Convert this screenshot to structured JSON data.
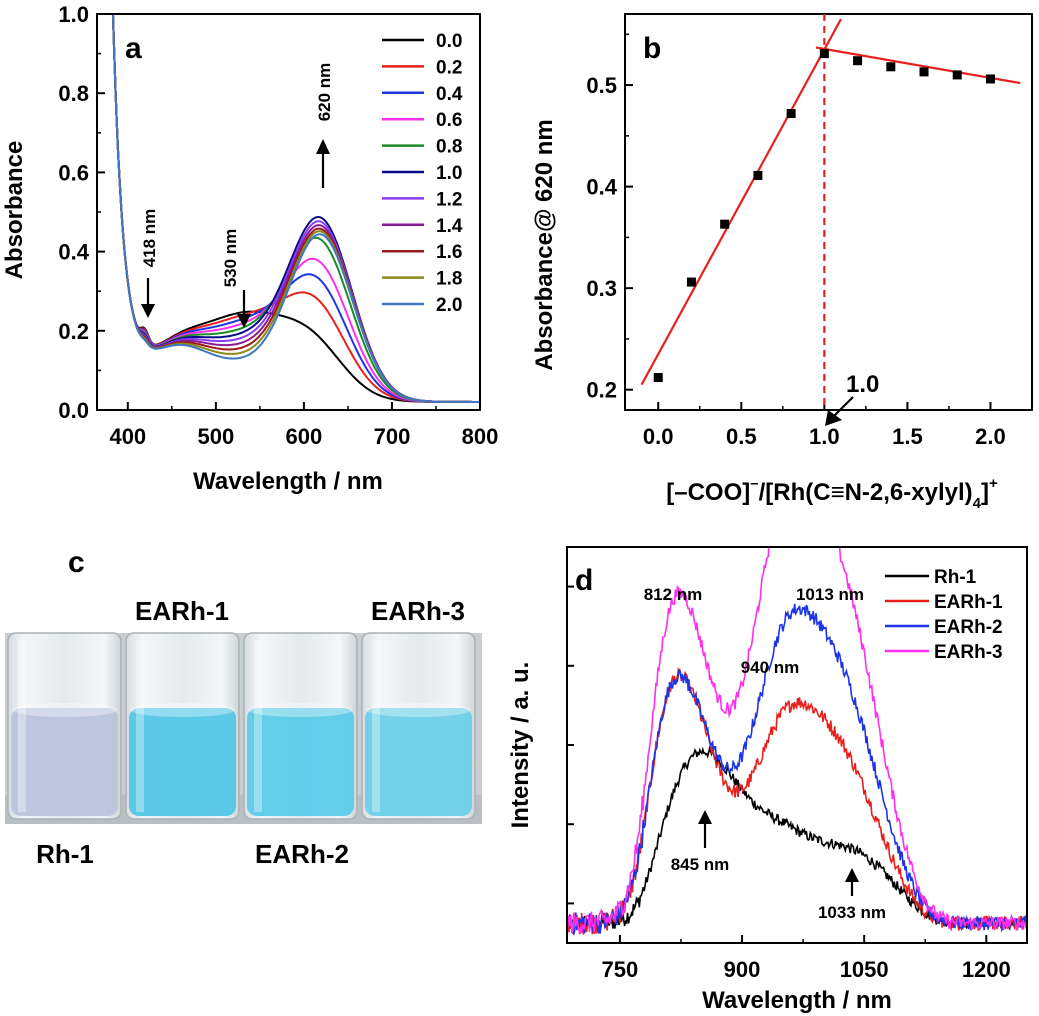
{
  "chart_data": [
    {
      "panel": "a",
      "type": "line",
      "xlabel": "Wavelength / nm",
      "ylabel": "Absorbance",
      "xlim": [
        365,
        800
      ],
      "ylim": [
        0.0,
        1.0
      ],
      "xticks": [
        400,
        500,
        600,
        700,
        800
      ],
      "yticks": [
        0.0,
        0.2,
        0.4,
        0.6,
        0.8,
        1.0
      ],
      "xtick_labels": [
        "400",
        "500",
        "600",
        "700",
        "800"
      ],
      "ytick_labels": [
        "0.0",
        "0.2",
        "0.4",
        "0.6",
        "0.8",
        "1.0"
      ],
      "legend_position": "top-right",
      "series": [
        {
          "name": "0.0",
          "color": "#000000",
          "peak": 0.215
        },
        {
          "name": "0.2",
          "color": "#e8201d",
          "peak": 0.305
        },
        {
          "name": "0.4",
          "color": "#1e35e6",
          "peak": 0.363
        },
        {
          "name": "0.6",
          "color": "#ff2ff0",
          "peak": 0.411
        },
        {
          "name": "0.8",
          "color": "#1a8a28",
          "peak": 0.472
        },
        {
          "name": "1.0",
          "color": "#0b0b8a",
          "peak": 0.531
        },
        {
          "name": "1.2",
          "color": "#8a3cf0",
          "peak": 0.524
        },
        {
          "name": "1.4",
          "color": "#8a1a9a",
          "peak": 0.518
        },
        {
          "name": "1.6",
          "color": "#9a1a1a",
          "peak": 0.513
        },
        {
          "name": "1.8",
          "color": "#8a8a1a",
          "peak": 0.51
        },
        {
          "name": "2.0",
          "color": "#3f78c0",
          "peak": 0.506
        }
      ],
      "annotations": {
        "a418": "418 nm",
        "a530": "530 nm",
        "a620": "620 nm"
      },
      "panel_label": "a"
    },
    {
      "panel": "b",
      "type": "scatter",
      "xlabel_main": "[–COO]",
      "xlabel_sup1": "–",
      "xlabel_mid": "/[Rh(C≡N-2,6-xylyl)",
      "xlabel_sub": "4",
      "xlabel_end": "]",
      "xlabel_sup2": "+",
      "ylabel": "Absorbance@ 620 nm",
      "xlim": [
        -0.2,
        2.25
      ],
      "ylim": [
        0.18,
        0.57
      ],
      "xticks": [
        0.0,
        0.5,
        1.0,
        1.5,
        2.0
      ],
      "yticks": [
        0.2,
        0.3,
        0.4,
        0.5
      ],
      "xtick_labels": [
        "0.0",
        "0.5",
        "1.0",
        "1.5",
        "2.0"
      ],
      "ytick_labels": [
        "0.2",
        "0.3",
        "0.4",
        "0.5"
      ],
      "x": [
        0.0,
        0.2,
        0.4,
        0.6,
        0.8,
        1.0,
        1.2,
        1.4,
        1.6,
        1.8,
        2.0
      ],
      "y": [
        0.212,
        0.306,
        0.363,
        0.411,
        0.472,
        0.531,
        0.524,
        0.518,
        0.513,
        0.51,
        0.506
      ],
      "fit_lines": [
        {
          "x": [
            -0.1,
            1.1
          ],
          "y": [
            0.205,
            0.565
          ]
        },
        {
          "x": [
            0.95,
            2.18
          ],
          "y": [
            0.537,
            0.502
          ]
        }
      ],
      "vline_x": 1.0,
      "annotation": "1.0",
      "panel_label": "b"
    },
    {
      "panel": "d",
      "type": "line",
      "xlabel": "Wavelength / nm",
      "ylabel": "Intensity / a. u.",
      "xlim": [
        685,
        1250
      ],
      "ylim": [
        0.0,
        1.0
      ],
      "xticks": [
        750,
        900,
        1050,
        1200
      ],
      "xtick_labels": [
        "750",
        "900",
        "1050",
        "1200"
      ],
      "legend_position": "top-right",
      "series": [
        {
          "name": "Rh-1",
          "color": "#000000"
        },
        {
          "name": "EARh-1",
          "color": "#e8201d"
        },
        {
          "name": "EARh-2",
          "color": "#1e35e6"
        },
        {
          "name": "EARh-3",
          "color": "#ff2ff0"
        }
      ],
      "annotations": {
        "d812": "812 nm",
        "d1013": "1013 nm",
        "d940": "940 nm",
        "d845": "845 nm",
        "d1033": "1033 nm"
      },
      "panel_label": "d"
    }
  ],
  "photo": {
    "panel_label": "c",
    "vials": [
      {
        "label": "Rh-1",
        "liquid": "#b9c4dc"
      },
      {
        "label": "EARh-1",
        "liquid": "#52c6e6"
      },
      {
        "label": "EARh-2",
        "liquid": "#5ccbe8"
      },
      {
        "label": "EARh-3",
        "liquid": "#6ccfe8"
      }
    ],
    "labels": {
      "earh1": "EARh-1",
      "earh3": "EARh-3",
      "rh1": "Rh-1",
      "earh2": "EARh-2"
    }
  }
}
